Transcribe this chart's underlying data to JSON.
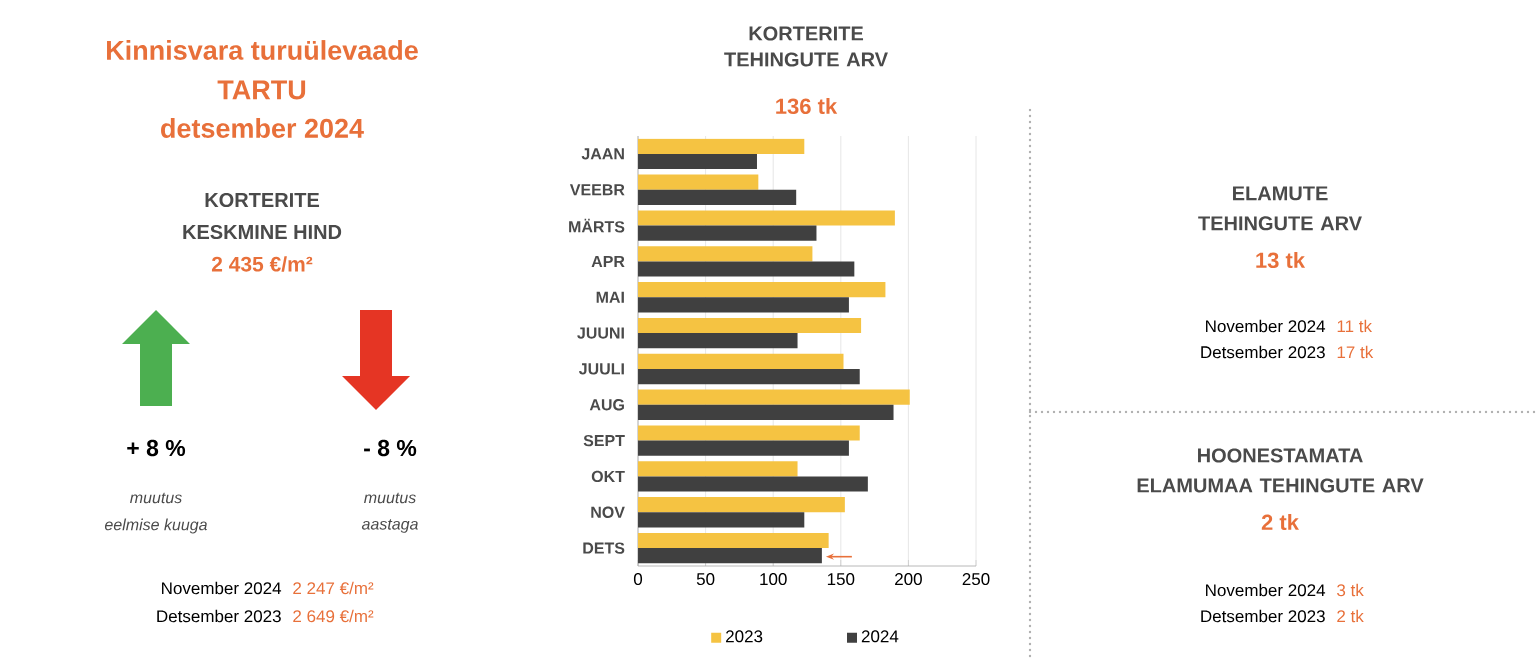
{
  "chart_data": [
    {
      "type": "other",
      "annotations": [
        "Kinnisvara turuülevaade",
        "TARTU",
        "detsember 2024",
        "KORTERITE",
        "KESKMINE HIND",
        "2 435 €/m²",
        "+ 8 %",
        "muutus",
        "eelmise kuuga",
        "- 8 %",
        "muutus",
        "aastaga",
        "November 2024",
        "2 247 €/m²",
        "Detsember 2023",
        "2 649 €/m²"
      ]
    },
    {
      "type": "bar",
      "orientation": "horizontal",
      "title": "KORTERITE TEHINGUTE ARV",
      "subtitle": "136 tk",
      "categories": [
        "JAAN",
        "VEEBR",
        "MÄRTS",
        "APR",
        "MAI",
        "JUUNI",
        "JUULI",
        "AUG",
        "SEPT",
        "OKT",
        "NOV",
        "DETS"
      ],
      "series": [
        {
          "name": "2023",
          "color": "#f5c342",
          "values": [
            123,
            89,
            190,
            129,
            183,
            165,
            152,
            201,
            164,
            118,
            153,
            141
          ]
        },
        {
          "name": "2024",
          "color": "#404040",
          "values": [
            88,
            117,
            132,
            160,
            156,
            118,
            164,
            189,
            156,
            170,
            123,
            136
          ]
        }
      ],
      "xlim": [
        0,
        250
      ],
      "xticks": [
        0,
        50,
        100,
        150,
        200,
        250
      ],
      "grid": "x",
      "legend": "bottom"
    },
    {
      "type": "other",
      "title": "ELAMUTE TEHINGUTE ARV",
      "subtitle": "13 tk",
      "annotations": [
        "November 2024",
        "11 tk",
        "Detsember 2023",
        "17 tk"
      ]
    },
    {
      "type": "other",
      "title": "HOONESTAMATA ELAMUMAA TEHINGUTE ARV",
      "subtitle": "2 tk",
      "annotations": [
        "November 2024",
        "3 tk",
        "Detsember 2023",
        "2 tk"
      ]
    }
  ]
}
